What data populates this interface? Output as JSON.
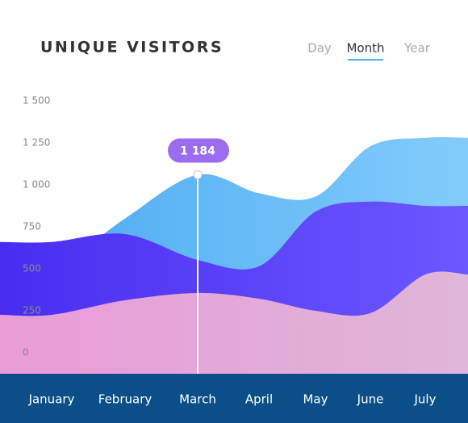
{
  "tabs": {
    "items": [
      "Day",
      "Month",
      "Year"
    ],
    "active": "Month"
  },
  "chart_data": {
    "type": "area",
    "title": "UNIQUE VISITORS",
    "categories": [
      "January",
      "February",
      "March",
      "April",
      "May",
      "June",
      "July"
    ],
    "series": [
      {
        "color": "#6cbcf8",
        "values": [
          490,
          800,
          1060,
          950,
          930,
          1230,
          1280
        ]
      },
      {
        "color": "#5a3ef5",
        "values": [
          660,
          707,
          553,
          515,
          841,
          900,
          875
        ]
      },
      {
        "color": "#e6a8d8",
        "values": [
          226,
          313,
          356,
          322,
          250,
          236,
          466
        ]
      }
    ],
    "ylim": [
      0,
      1500
    ],
    "yticks": [
      0,
      250,
      500,
      750,
      {
        "value": 1000,
        "label": "1 000"
      },
      {
        "value": 1250,
        "label": "1 250"
      },
      {
        "value": 1500,
        "label": "1 500"
      }
    ],
    "annotation": {
      "text": "1 184",
      "at": "March"
    }
  }
}
